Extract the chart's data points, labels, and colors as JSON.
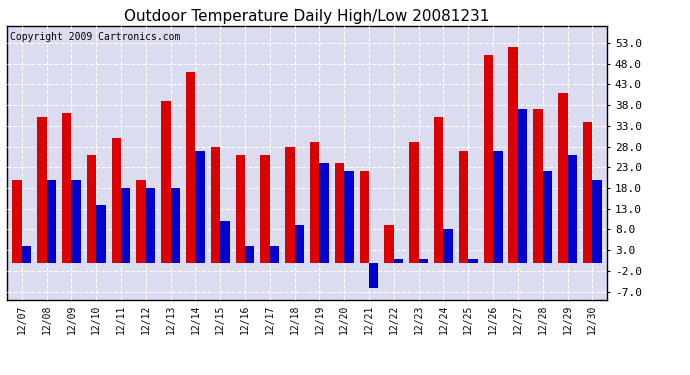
{
  "title": "Outdoor Temperature Daily High/Low 20081231",
  "copyright": "Copyright 2009 Cartronics.com",
  "dates": [
    "12/07",
    "12/08",
    "12/09",
    "12/10",
    "12/11",
    "12/12",
    "12/13",
    "12/14",
    "12/15",
    "12/16",
    "12/17",
    "12/18",
    "12/19",
    "12/20",
    "12/21",
    "12/22",
    "12/23",
    "12/24",
    "12/25",
    "12/26",
    "12/27",
    "12/28",
    "12/29",
    "12/30"
  ],
  "highs": [
    20,
    35,
    36,
    26,
    30,
    20,
    39,
    46,
    28,
    26,
    26,
    28,
    29,
    24,
    22,
    9,
    29,
    35,
    27,
    50,
    52,
    37,
    41,
    34
  ],
  "lows": [
    4,
    20,
    20,
    14,
    18,
    18,
    18,
    27,
    10,
    4,
    4,
    9,
    24,
    22,
    -6,
    1,
    1,
    8,
    1,
    27,
    37,
    22,
    26,
    20
  ],
  "ylim_min": -9,
  "ylim_max": 57,
  "yticks": [
    -7.0,
    -2.0,
    3.0,
    8.0,
    13.0,
    18.0,
    23.0,
    28.0,
    33.0,
    38.0,
    43.0,
    48.0,
    53.0
  ],
  "bar_width": 0.38,
  "high_color": "#dd0000",
  "low_color": "#0000cc",
  "bg_color": "#ffffff",
  "plot_bg_color": "#dcdcf0",
  "grid_color": "#ffffff",
  "title_fontsize": 11,
  "copyright_fontsize": 7
}
